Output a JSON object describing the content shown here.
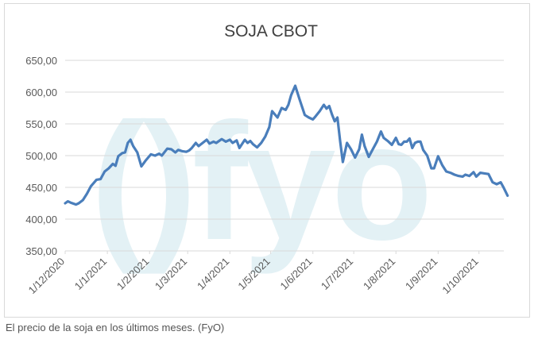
{
  "chart_data": {
    "type": "line",
    "title": "SOJA CBOT",
    "xlabel": "",
    "ylabel": "",
    "ylim": [
      350,
      650
    ],
    "yticks": [
      "350,00",
      "400,00",
      "450,00",
      "500,00",
      "550,00",
      "600,00",
      "650,00"
    ],
    "ytick_values": [
      350,
      400,
      450,
      500,
      550,
      600,
      650
    ],
    "xticks": [
      "1/12/2020",
      "1/1/2021",
      "1/2/2021",
      "1/3/2021",
      "1/4/2021",
      "1/5/2021",
      "1/6/2021",
      "1/7/2021",
      "1/8/2021",
      "1/9/2021",
      "1/10/2021"
    ],
    "grid": true,
    "legend": "none",
    "line_color": "#4a7ebb",
    "watermark": "()fyo",
    "watermark_color": "#e3f1f5",
    "series": [
      {
        "x": [
          "2020-12-01",
          "2020-12-03",
          "2020-12-05",
          "2020-12-09",
          "2020-12-11",
          "2020-12-14",
          "2020-12-17",
          "2020-12-20",
          "2020-12-24",
          "2020-12-27",
          "2020-12-30",
          "2021-01-02",
          "2021-01-05",
          "2021-01-07",
          "2021-01-09",
          "2021-01-12",
          "2021-01-14",
          "2021-01-16",
          "2021-01-18",
          "2021-01-20",
          "2021-01-23",
          "2021-01-26",
          "2021-01-29",
          "2021-01-31",
          "2021-02-02",
          "2021-02-05",
          "2021-02-08",
          "2021-02-10",
          "2021-02-14",
          "2021-02-17",
          "2021-02-20",
          "2021-02-22",
          "2021-02-25",
          "2021-02-28",
          "2021-03-02",
          "2021-03-04",
          "2021-03-07",
          "2021-03-09",
          "2021-03-12",
          "2021-03-15",
          "2021-03-17",
          "2021-03-20",
          "2021-03-22",
          "2021-03-26",
          "2021-03-29",
          "2021-04-01",
          "2021-04-03",
          "2021-04-06",
          "2021-04-08",
          "2021-04-12",
          "2021-04-14",
          "2021-04-16",
          "2021-04-18",
          "2021-04-21",
          "2021-04-24",
          "2021-04-27",
          "2021-04-30",
          "2021-05-02",
          "2021-05-04",
          "2021-05-06",
          "2021-05-09",
          "2021-05-12",
          "2021-05-14",
          "2021-05-16",
          "2021-05-19",
          "2021-05-22",
          "2021-05-26",
          "2021-05-29",
          "2021-06-01",
          "2021-06-03",
          "2021-06-06",
          "2021-06-09",
          "2021-06-11",
          "2021-06-13",
          "2021-06-15",
          "2021-06-17",
          "2021-06-19",
          "2021-06-21",
          "2021-06-23",
          "2021-06-26",
          "2021-06-29",
          "2021-07-02",
          "2021-07-05",
          "2021-07-07",
          "2021-07-09",
          "2021-07-12",
          "2021-07-15",
          "2021-07-18",
          "2021-07-21",
          "2021-07-23",
          "2021-07-26",
          "2021-07-29",
          "2021-08-01",
          "2021-08-03",
          "2021-08-05",
          "2021-08-07",
          "2021-08-09",
          "2021-08-11",
          "2021-08-13",
          "2021-08-15",
          "2021-08-17",
          "2021-08-19",
          "2021-08-21",
          "2021-08-24",
          "2021-08-27",
          "2021-08-29",
          "2021-09-01",
          "2021-09-04",
          "2021-09-07",
          "2021-09-10",
          "2021-09-13",
          "2021-09-16",
          "2021-09-19",
          "2021-09-21",
          "2021-09-24",
          "2021-09-27",
          "2021-09-29",
          "2021-10-02",
          "2021-10-05",
          "2021-10-08",
          "2021-10-11",
          "2021-10-14",
          "2021-10-17",
          "2021-10-19",
          "2021-10-22"
        ],
        "values": [
          425,
          428,
          426,
          423,
          425,
          430,
          440,
          452,
          462,
          463,
          475,
          480,
          487,
          484,
          499,
          504,
          505,
          520,
          525,
          515,
          505,
          483,
          492,
          497,
          502,
          500,
          503,
          500,
          511,
          510,
          505,
          509,
          507,
          506,
          508,
          512,
          520,
          515,
          520,
          525,
          519,
          522,
          520,
          526,
          522,
          525,
          520,
          524,
          512,
          525,
          520,
          523,
          518,
          513,
          520,
          530,
          545,
          570,
          565,
          560,
          575,
          572,
          580,
          595,
          610,
          590,
          564,
          560,
          557,
          562,
          570,
          580,
          574,
          578,
          565,
          554,
          560,
          523,
          490,
          520,
          510,
          497,
          510,
          533,
          515,
          498,
          510,
          522,
          538,
          528,
          523,
          517,
          528,
          518,
          517,
          522,
          522,
          527,
          512,
          520,
          522,
          522,
          509,
          500,
          480,
          480,
          499,
          485,
          475,
          473,
          470,
          468,
          467,
          470,
          468,
          474,
          467,
          473,
          472,
          471,
          458,
          455,
          458,
          450,
          437
        ]
      }
    ]
  },
  "caption": "El precio de la soja en los últimos meses. (FyO)"
}
